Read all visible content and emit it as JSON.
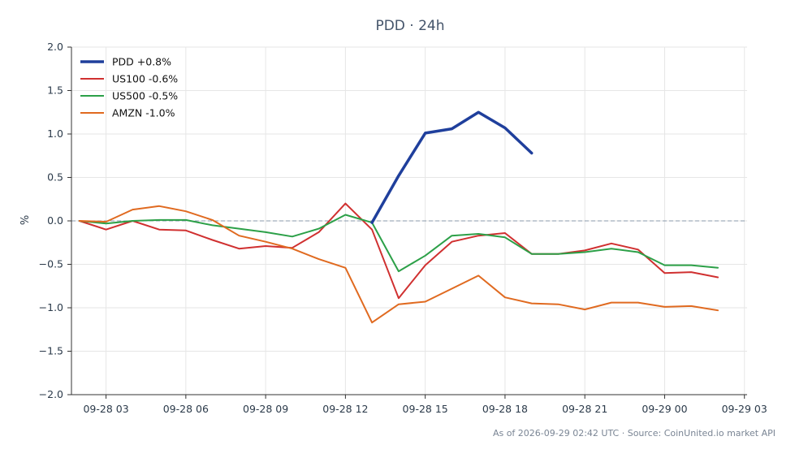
{
  "chart_data": {
    "type": "line",
    "title": "PDD · 24h",
    "ylabel": "%",
    "xlabel": "",
    "ylim": [
      -2.0,
      2.0
    ],
    "yticks": [
      "2.0",
      "1.5",
      "1.0",
      "0.5",
      "0.0",
      "−0.5",
      "−1.0",
      "−1.5",
      "−2.0"
    ],
    "ytick_values": [
      2.0,
      1.5,
      1.0,
      0.5,
      0.0,
      -0.5,
      -1.0,
      -1.5,
      -2.0
    ],
    "xlim_hours": [
      1.7,
      27.1
    ],
    "xticks": [
      "09-28 03",
      "09-28 06",
      "09-28 09",
      "09-28 12",
      "09-28 15",
      "09-28 18",
      "09-28 21",
      "09-29 00",
      "09-29 03"
    ],
    "xtick_hours": [
      3,
      6,
      9,
      12,
      15,
      18,
      21,
      24,
      27
    ],
    "grid": true,
    "zero_line": true,
    "legend_position": "top-left",
    "series": [
      {
        "name": "PDD +0.8%",
        "color": "#1f3f9c",
        "emphasis": true,
        "x": [
          13,
          14,
          15,
          16,
          17,
          18,
          19
        ],
        "values": [
          -0.02,
          0.52,
          1.01,
          1.06,
          1.25,
          1.07,
          0.78
        ]
      },
      {
        "name": "US100 -0.6%",
        "color": "#d03030",
        "x": [
          2,
          3,
          4,
          5,
          6,
          7,
          8,
          9,
          10,
          11,
          12,
          13,
          14,
          15,
          16,
          17,
          18,
          19,
          20,
          21,
          22,
          23,
          24,
          25,
          26
        ],
        "values": [
          0.0,
          -0.1,
          0.0,
          -0.1,
          -0.11,
          -0.22,
          -0.32,
          -0.29,
          -0.31,
          -0.13,
          0.2,
          -0.1,
          -0.89,
          -0.51,
          -0.24,
          -0.17,
          -0.14,
          -0.38,
          -0.38,
          -0.34,
          -0.26,
          -0.33,
          -0.6,
          -0.59,
          -0.65
        ]
      },
      {
        "name": "US500 -0.5%",
        "color": "#2ca048",
        "x": [
          2,
          3,
          4,
          5,
          6,
          7,
          8,
          9,
          10,
          11,
          12,
          13,
          14,
          15,
          16,
          17,
          18,
          19,
          20,
          21,
          22,
          23,
          24,
          25,
          26
        ],
        "values": [
          0.0,
          -0.03,
          0.0,
          0.01,
          0.01,
          -0.05,
          -0.09,
          -0.13,
          -0.18,
          -0.09,
          0.07,
          -0.02,
          -0.58,
          -0.4,
          -0.17,
          -0.15,
          -0.19,
          -0.38,
          -0.38,
          -0.36,
          -0.32,
          -0.36,
          -0.51,
          -0.51,
          -0.54
        ]
      },
      {
        "name": "AMZN -1.0%",
        "color": "#e06a20",
        "x": [
          2,
          3,
          4,
          5,
          6,
          7,
          8,
          9,
          10,
          11,
          12,
          13,
          14,
          15,
          16,
          17,
          18,
          19,
          20,
          21,
          22,
          23,
          24,
          25,
          26
        ],
        "values": [
          0.0,
          -0.01,
          0.13,
          0.17,
          0.11,
          0.01,
          -0.17,
          -0.24,
          -0.32,
          -0.44,
          -0.54,
          -1.17,
          -0.96,
          -0.93,
          -0.78,
          -0.63,
          -0.88,
          -0.95,
          -0.96,
          -1.02,
          -0.94,
          -0.94,
          -0.99,
          -0.98,
          -1.03
        ]
      }
    ]
  },
  "footer": {
    "text": "As of 2026-09-29 02:42 UTC · Source: CoinUnited.io market API"
  }
}
